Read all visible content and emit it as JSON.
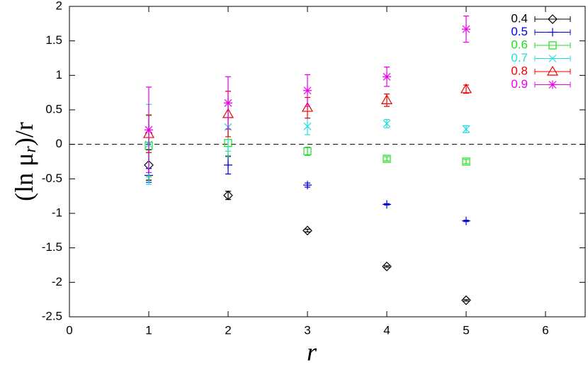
{
  "chart_data": {
    "type": "errorbar",
    "x_label": "r",
    "y_label": {
      "text": "(ln μ",
      "sub": "r",
      "tail": ")/r"
    },
    "xlim": [
      0,
      6.5
    ],
    "xticks": [
      0,
      1,
      2,
      3,
      4,
      5,
      6
    ],
    "ylim": [
      -2.5,
      2
    ],
    "yticks": [
      -2.5,
      -2,
      -1.5,
      -1,
      -0.5,
      0,
      0.5,
      1,
      1.5,
      2
    ],
    "hline": 0,
    "legend": "top-right",
    "series": [
      {
        "name": "0.4",
        "color": "#000000",
        "marker": "diamond",
        "x": [
          1,
          2,
          3,
          4,
          5
        ],
        "values": [
          -0.3,
          -0.74,
          -1.25,
          -1.77,
          -2.26
        ],
        "errors": [
          0.22,
          0.06,
          0.02,
          0.01,
          0.01
        ]
      },
      {
        "name": "0.5",
        "color": "#0000dd",
        "marker": "plus",
        "x": [
          1,
          2,
          3,
          4,
          5
        ],
        "values": [
          -0.45,
          -0.3,
          -0.59,
          -0.87,
          -1.11
        ],
        "errors": [
          0.1,
          0.13,
          0.03,
          0.01,
          0.01
        ]
      },
      {
        "name": "0.6",
        "color": "#22dd22",
        "marker": "square",
        "x": [
          1,
          2,
          3,
          4,
          5
        ],
        "values": [
          -0.02,
          0.02,
          -0.1,
          -0.21,
          -0.25
        ],
        "errors": [
          0.45,
          0.2,
          0.06,
          0.03,
          0.03
        ]
      },
      {
        "name": "0.7",
        "color": "#22dddd",
        "marker": "cross",
        "x": [
          1,
          2,
          3,
          4,
          5
        ],
        "values": [
          0,
          0.25,
          0.26,
          0.3,
          0.22
        ],
        "errors": [
          0.58,
          0.35,
          0.12,
          0.06,
          0.05
        ]
      },
      {
        "name": "0.8",
        "color": "#ee0000",
        "marker": "triangle",
        "x": [
          1,
          2,
          3,
          4,
          5
        ],
        "values": [
          0.15,
          0.44,
          0.53,
          0.64,
          0.8
        ],
        "errors": [
          0.27,
          0.33,
          0.15,
          0.09,
          0.06
        ]
      },
      {
        "name": "0.9",
        "color": "#ee00ee",
        "marker": "star",
        "x": [
          1,
          2,
          3,
          4,
          5
        ],
        "values": [
          0.21,
          0.6,
          0.78,
          0.98,
          1.67
        ],
        "errors": [
          0.62,
          0.38,
          0.23,
          0.14,
          0.19
        ]
      }
    ]
  }
}
